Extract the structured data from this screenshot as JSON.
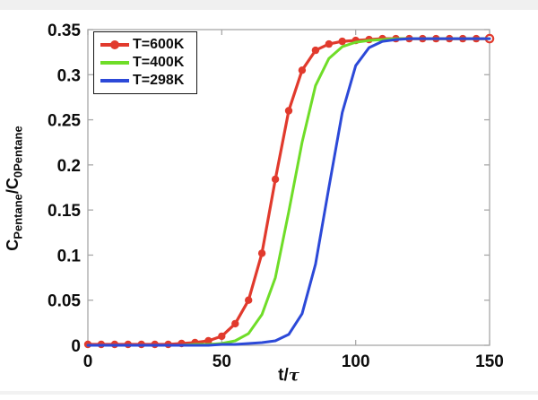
{
  "chart_data": {
    "type": "line",
    "title": "",
    "xlabel": "t/τ",
    "ylabel": "C_Pentane/C_0Pentane",
    "xlim": [
      0,
      150
    ],
    "ylim": [
      0,
      0.35
    ],
    "grid": false,
    "box": true,
    "axis_color": "#a8a8a8",
    "text_color": "#0d0d0d",
    "legend_position": "top-left",
    "xticks": {
      "values": [
        0,
        50,
        100,
        150
      ],
      "labels": [
        "0",
        "50",
        "100",
        "150"
      ]
    },
    "yticks": {
      "values": [
        0,
        0.05,
        0.1,
        0.15,
        0.2,
        0.25,
        0.3,
        0.35
      ],
      "labels": [
        "0",
        "0.05",
        "0.1",
        "0.15",
        "0.2",
        "0.25",
        "0.3",
        "0.35"
      ]
    },
    "x": [
      0,
      5,
      10,
      15,
      20,
      25,
      30,
      35,
      40,
      45,
      50,
      55,
      60,
      65,
      70,
      75,
      80,
      85,
      90,
      95,
      100,
      105,
      110,
      115,
      120,
      125,
      130,
      135,
      140,
      145,
      150
    ],
    "series": [
      {
        "name": "T=600K",
        "color": "#e13a2d",
        "marker": "circle",
        "end_marker": "open",
        "line_width": 3.2,
        "values": [
          0.001,
          0.001,
          0.001,
          0.001,
          0.001,
          0.001,
          0.001,
          0.002,
          0.003,
          0.005,
          0.01,
          0.024,
          0.05,
          0.102,
          0.184,
          0.26,
          0.305,
          0.327,
          0.334,
          0.337,
          0.338,
          0.339,
          0.34,
          0.34,
          0.34,
          0.34,
          0.34,
          0.34,
          0.34,
          0.34,
          0.34
        ]
      },
      {
        "name": "T=400K",
        "color": "#6fdd28",
        "marker": "none",
        "line_width": 3.0,
        "values": [
          0.0,
          0.0,
          0.0,
          0.0,
          0.0,
          0.0,
          0.0,
          0.0,
          0.001,
          0.001,
          0.002,
          0.005,
          0.013,
          0.034,
          0.075,
          0.148,
          0.225,
          0.288,
          0.318,
          0.331,
          0.336,
          0.338,
          0.339,
          0.34,
          0.34,
          0.34,
          0.34,
          0.34,
          0.34,
          0.34,
          0.34
        ]
      },
      {
        "name": "T=298K",
        "color": "#2c49d8",
        "marker": "none",
        "line_width": 3.0,
        "values": [
          0.0,
          0.0,
          0.0,
          0.0,
          0.0,
          0.0,
          0.0,
          0.0,
          0.0,
          0.0,
          0.001,
          0.001,
          0.002,
          0.003,
          0.005,
          0.012,
          0.035,
          0.09,
          0.175,
          0.258,
          0.31,
          0.33,
          0.337,
          0.339,
          0.34,
          0.34,
          0.34,
          0.34,
          0.34,
          0.34,
          0.34
        ]
      }
    ]
  },
  "labels": {
    "ylabel_c1": "C",
    "ylabel_sub1": "Pentane",
    "ylabel_c2": "/C",
    "ylabel_sub2": "0Pentane",
    "xlabel_main": "t/",
    "xlabel_tau": "τ"
  }
}
